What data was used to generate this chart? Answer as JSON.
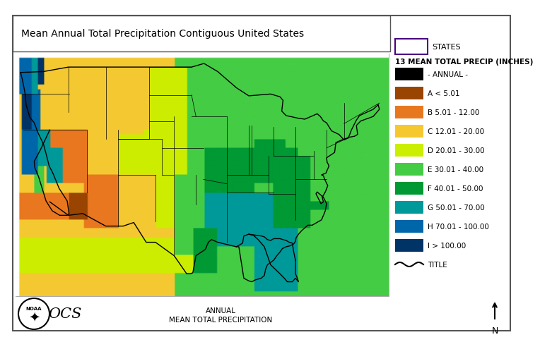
{
  "title": "Mean Annual Total Precipitation Contiguous United States",
  "legend_title": "13 MEAN TOTAL PRECIP (INCHES)",
  "states_label": "STATES",
  "states_border_color": "#4B0082",
  "bottom_label1": "ANNUAL",
  "bottom_label2": "MEAN TOTAL PRECIPITATION",
  "legend_items": [
    {
      "label": "- ANNUAL -",
      "color": "#000000"
    },
    {
      "label": "A < 5.01",
      "color": "#994400"
    },
    {
      "label": "B 5.01 - 12.00",
      "color": "#E87820"
    },
    {
      "label": "C 12.01 - 20.00",
      "color": "#F5C830"
    },
    {
      "label": "D 20.01 - 30.00",
      "color": "#CCEE00"
    },
    {
      "label": "E 30.01 - 40.00",
      "color": "#44CC44"
    },
    {
      "label": "F 40.01 - 50.00",
      "color": "#009933"
    },
    {
      "label": "G 50.01 - 70.00",
      "color": "#009999"
    },
    {
      "label": "H 70.01 - 100.00",
      "color": "#0066AA"
    },
    {
      "label": "I > 100.00",
      "color": "#003366"
    }
  ],
  "bg_color": "#FFFFFF",
  "title_fontsize": 10,
  "legend_fontsize": 8
}
